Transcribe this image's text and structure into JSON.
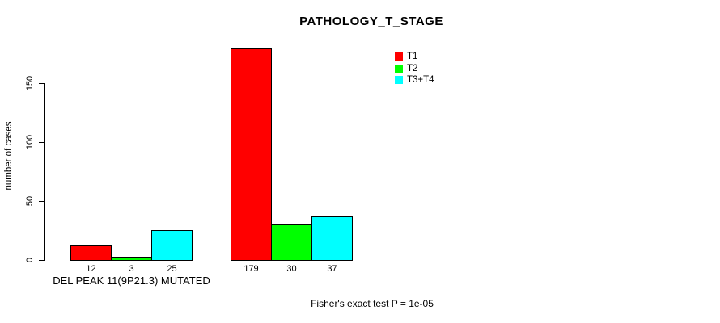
{
  "title": "PATHOLOGY_T_STAGE",
  "chart_data": {
    "type": "bar",
    "title": "PATHOLOGY_T_STAGE",
    "xlabel": "",
    "ylabel": "number of cases",
    "yticks": [
      0,
      50,
      100,
      150
    ],
    "ylim": [
      0,
      185
    ],
    "grid": false,
    "legend_position": "top-right",
    "bar_border_color": "#000000",
    "groups": [
      {
        "label": "DEL PEAK 11(9P21.3) MUTATED"
      },
      {
        "label": ""
      }
    ],
    "series": [
      {
        "name": "T1",
        "color": "#ff0000",
        "values": [
          12,
          179
        ]
      },
      {
        "name": "T2",
        "color": "#00ff00",
        "values": [
          3,
          30
        ]
      },
      {
        "name": "T3+T4",
        "color": "#00ffff",
        "values": [
          25,
          37
        ]
      }
    ],
    "annotation": "Fisher's exact test P = 1e-05"
  }
}
